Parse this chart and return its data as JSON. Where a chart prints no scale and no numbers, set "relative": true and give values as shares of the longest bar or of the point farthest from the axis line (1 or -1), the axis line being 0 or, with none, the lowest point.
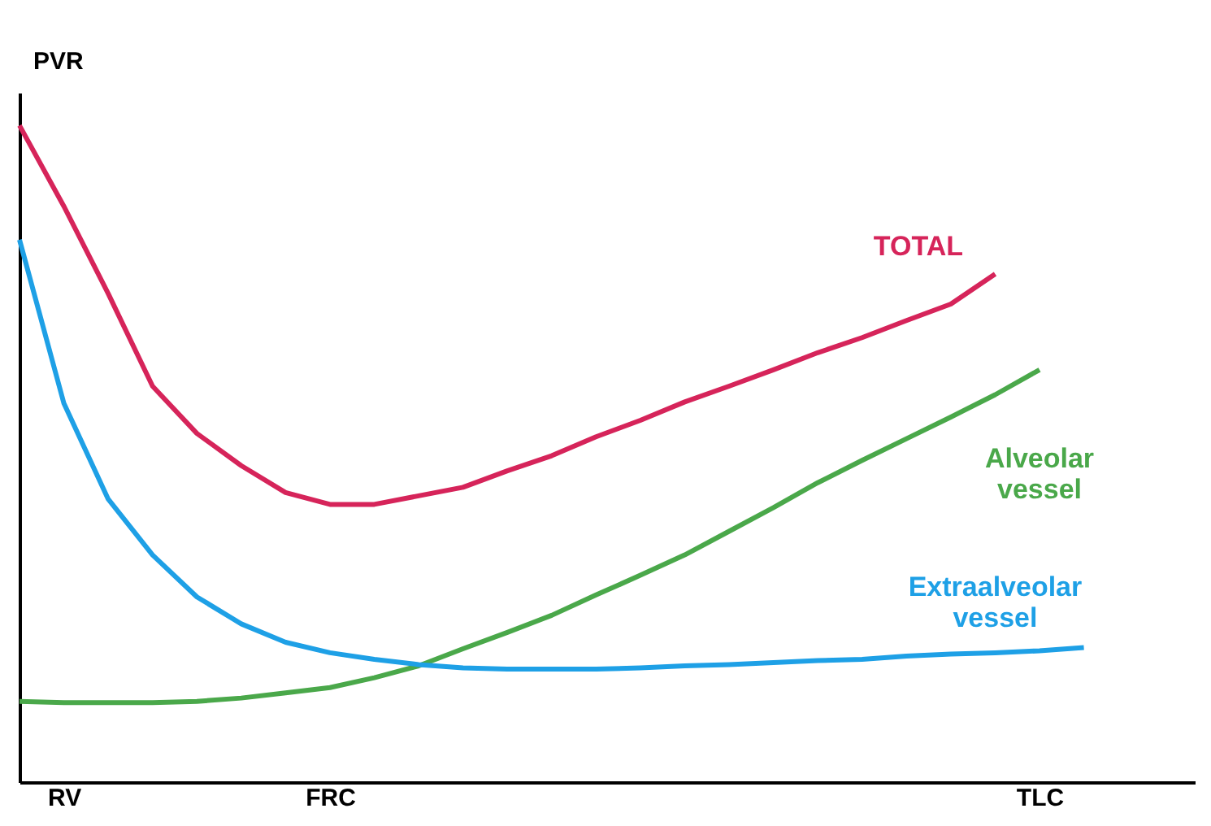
{
  "chart_data": {
    "type": "line",
    "relative": true,
    "ylabel": "PVR",
    "categories": [
      null,
      "RV",
      null,
      null,
      null,
      null,
      null,
      "FRC",
      null,
      null,
      null,
      null,
      null,
      null,
      null,
      null,
      null,
      null,
      null,
      null,
      null,
      null,
      null,
      "TLC",
      null
    ],
    "marker": "none",
    "line_style": "solid",
    "series": [
      {
        "name": "TOTAL",
        "color": "#d6245a",
        "values": [
          1.0,
          0.877,
          0.744,
          0.603,
          0.531,
          0.482,
          0.441,
          0.423,
          0.423,
          0.436,
          0.449,
          0.474,
          0.497,
          0.526,
          0.551,
          0.579,
          0.603,
          0.628,
          0.654,
          0.677,
          0.703,
          0.728,
          0.774,
          null,
          null
        ]
      },
      {
        "name": "Alveolar vessel",
        "color": "#4aa84a",
        "values": [
          0.123,
          0.121,
          0.121,
          0.121,
          0.123,
          0.128,
          0.136,
          0.144,
          0.159,
          0.177,
          0.203,
          0.228,
          0.254,
          0.285,
          0.315,
          0.346,
          0.382,
          0.418,
          0.456,
          0.49,
          0.523,
          0.556,
          0.59,
          0.628,
          null
        ]
      },
      {
        "name": "Extraalveolar vessel",
        "color": "#1ea0e6",
        "values": [
          0.826,
          0.577,
          0.431,
          0.346,
          0.282,
          0.241,
          0.213,
          0.197,
          0.187,
          0.179,
          0.174,
          0.172,
          0.172,
          0.172,
          0.174,
          0.177,
          0.179,
          0.182,
          0.185,
          0.187,
          0.192,
          0.195,
          0.197,
          0.2,
          0.205
        ]
      }
    ]
  }
}
